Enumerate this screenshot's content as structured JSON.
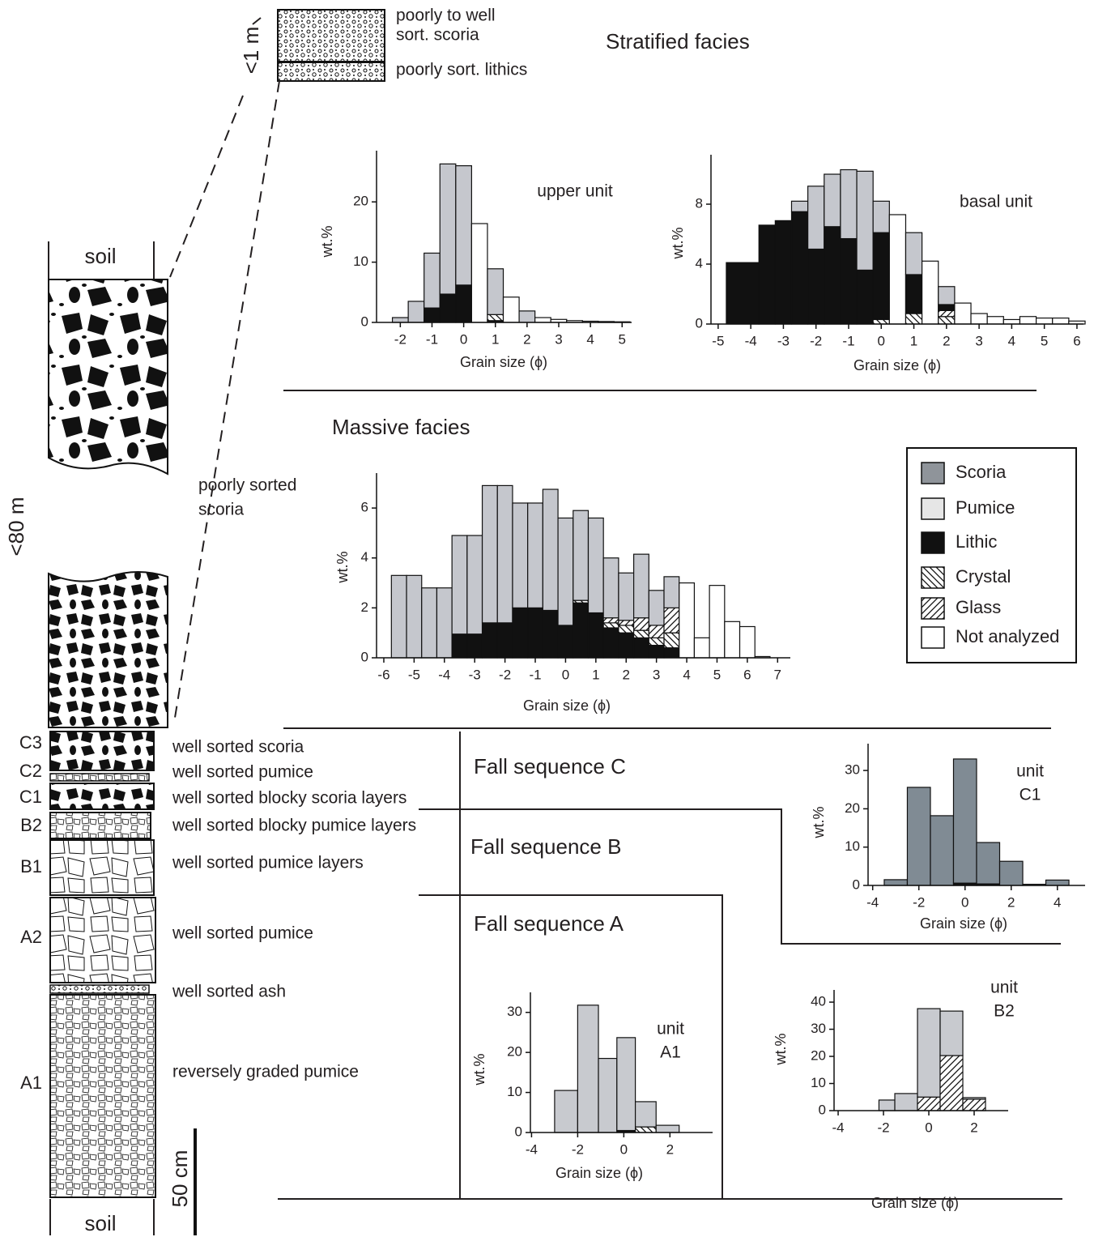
{
  "chart_data": [
    {
      "type": "histogram",
      "title": [
        "upper unit"
      ],
      "xlabel": "Grain size (ϕ)",
      "ylabel": "wt.%",
      "bins": [
        -2.25,
        -1.75,
        -1.25,
        -0.75,
        -0.25,
        0.25,
        0.75,
        1.25,
        1.75,
        2.25,
        2.75,
        3.25,
        3.75,
        4.25,
        4.75,
        5.25
      ],
      "series": [
        {
          "name": "Lithic",
          "color": "#111111",
          "values": [
            0,
            0,
            2.4,
            4.7,
            6.2,
            0,
            0.3,
            0,
            0,
            0,
            0,
            0,
            0,
            0,
            0
          ]
        },
        {
          "name": "Crystal",
          "color": "#ffffff",
          "values": [
            0,
            0,
            0,
            0,
            0,
            0,
            1.0,
            0,
            0,
            0,
            0,
            0,
            0,
            0,
            0
          ]
        },
        {
          "name": "Scoria",
          "color": "#c5c7cd",
          "values": [
            0.8,
            3.5,
            9.1,
            21.6,
            19.8,
            0,
            7.6,
            0,
            1.9,
            0,
            0,
            0,
            0,
            0,
            0
          ]
        },
        {
          "name": "Not analyzed",
          "color": "#ffffff",
          "values": [
            0,
            0,
            0,
            0,
            0,
            16.4,
            0,
            4.2,
            0,
            0.8,
            0.5,
            0.3,
            0.2,
            0.15,
            0.1
          ]
        }
      ],
      "xlim": [
        -2.75,
        5.3
      ],
      "ylim": [
        0,
        28.5
      ],
      "xticks": [
        -2,
        -1,
        0,
        1,
        2,
        3,
        4,
        5
      ],
      "yticks": [
        0,
        10,
        20
      ]
    },
    {
      "type": "histogram",
      "title": [
        "basal unit"
      ],
      "xlabel": "Grain size (ϕ)",
      "ylabel": "wt.%",
      "bins": [
        -4.75,
        -3.75,
        -3.25,
        -2.75,
        -2.25,
        -1.75,
        -1.25,
        -0.75,
        -0.25,
        0.25,
        0.75,
        1.25,
        1.75,
        2.25,
        2.75,
        3.25,
        3.75,
        4.25,
        4.75,
        5.25,
        5.75,
        6.25
      ],
      "series": [
        {
          "name": "Crystal",
          "color": "#ffffff",
          "values": [
            0,
            0,
            0,
            0,
            0,
            0,
            0,
            0,
            0.3,
            0,
            0.7,
            0,
            0.5,
            0,
            0,
            0,
            0,
            0,
            0,
            0,
            0
          ]
        },
        {
          "name": "Glass",
          "color": "#ffffff",
          "values": [
            0,
            0,
            0,
            0,
            0,
            0,
            0,
            0,
            0,
            0,
            0,
            0,
            0.4,
            0,
            0,
            0,
            0,
            0,
            0,
            0,
            0
          ]
        },
        {
          "name": "Lithic",
          "color": "#111111",
          "values": [
            4.1,
            6.6,
            6.9,
            7.5,
            5.0,
            6.5,
            5.7,
            3.6,
            5.8,
            0,
            2.6,
            0,
            0.4,
            0,
            0,
            0,
            0,
            0,
            0,
            0,
            0
          ]
        },
        {
          "name": "Scoria",
          "color": "#c5c7cd",
          "values": [
            0,
            0,
            0,
            0.7,
            4.2,
            3.5,
            4.6,
            6.6,
            2.1,
            0,
            2.8,
            0,
            1.2,
            0,
            0,
            0,
            0,
            0,
            0,
            0,
            0
          ]
        },
        {
          "name": "Not analyzed",
          "color": "#ffffff",
          "values": [
            0,
            0,
            0,
            0,
            0,
            0,
            0,
            0,
            0,
            7.3,
            0,
            4.2,
            0,
            1.4,
            0.7,
            0.5,
            0.3,
            0.5,
            0.4,
            0.4,
            0.2
          ]
        }
      ],
      "xlim": [
        -5.22,
        6.2
      ],
      "ylim": [
        0,
        11.3
      ],
      "xticks": [
        -5,
        -4,
        -3,
        -2,
        -1,
        0,
        1,
        2,
        3,
        4,
        5,
        6
      ],
      "yticks": [
        0,
        4,
        8
      ]
    },
    {
      "type": "histogram",
      "xlabel": "Grain size (ϕ)",
      "ylabel": "wt.%",
      "bins": [
        -5.75,
        -5.25,
        -4.75,
        -4.25,
        -3.75,
        -3.25,
        -2.75,
        -2.25,
        -1.75,
        -1.25,
        -0.75,
        -0.25,
        0.25,
        0.75,
        1.25,
        1.75,
        2.25,
        2.75,
        3.25,
        3.75,
        4.25,
        4.75,
        5.25,
        5.75,
        6.25,
        6.75
      ],
      "series": [
        {
          "name": "Lithic",
          "color": "#111111",
          "values": [
            0,
            0,
            0,
            0,
            0.95,
            0.95,
            1.4,
            1.4,
            2.0,
            2.0,
            1.9,
            1.3,
            2.2,
            1.8,
            1.2,
            1.0,
            0.8,
            0.5,
            0.4,
            0,
            0,
            0,
            0,
            0,
            0
          ]
        },
        {
          "name": "Crystal",
          "color": "#ffffff",
          "values": [
            0,
            0,
            0,
            0,
            0,
            0,
            0,
            0,
            0,
            0,
            0,
            0,
            0.1,
            0,
            0.2,
            0.3,
            0.3,
            0.3,
            0.6,
            0,
            0,
            0,
            0,
            0,
            0
          ]
        },
        {
          "name": "Glass",
          "color": "#ffffff",
          "values": [
            0,
            0,
            0,
            0,
            0,
            0,
            0,
            0,
            0,
            0,
            0,
            0,
            0,
            0,
            0.2,
            0.2,
            0.5,
            0.5,
            1.0,
            0,
            0,
            0,
            0,
            0,
            0
          ]
        },
        {
          "name": "Scoria",
          "color": "#c5c7cd",
          "values": [
            3.3,
            3.3,
            2.8,
            2.8,
            3.95,
            3.95,
            5.5,
            5.5,
            4.2,
            4.2,
            4.85,
            4.3,
            3.6,
            3.8,
            2.4,
            1.9,
            2.55,
            1.4,
            1.25,
            0,
            0,
            0,
            0,
            0,
            0
          ]
        },
        {
          "name": "Not analyzed",
          "color": "#ffffff",
          "values": [
            0,
            0,
            0,
            0,
            0,
            0,
            0,
            0,
            0,
            0,
            0,
            0,
            0,
            0,
            0,
            0,
            0,
            0,
            0,
            3.0,
            0.8,
            2.9,
            1.45,
            1.25,
            0.05
          ]
        }
      ],
      "xlim": [
        -6.24,
        7.42
      ],
      "ylim": [
        0,
        7.4
      ],
      "xticks": [
        -6,
        -5,
        -4,
        -3,
        -2,
        -1,
        0,
        1,
        2,
        3,
        4,
        5,
        6,
        7
      ],
      "yticks": [
        0,
        2,
        4,
        6
      ]
    },
    {
      "type": "histogram",
      "title": [
        "unit",
        "C1"
      ],
      "xlabel": "Grain size (ϕ)",
      "ylabel": "wt.%",
      "bins": [
        -3.5,
        -2.5,
        -1.5,
        -0.5,
        0.5,
        1.5,
        2.5,
        3.5,
        4.5
      ],
      "series": [
        {
          "name": "Lithic",
          "color": "#111111",
          "values": [
            0,
            0,
            0,
            0.6,
            0.4,
            0,
            0,
            0
          ]
        },
        {
          "name": "Scoria",
          "color": "#808b94",
          "values": [
            1.5,
            25.6,
            18.2,
            32.4,
            10.8,
            6.3,
            0.3,
            1.4
          ]
        }
      ],
      "xlim": [
        -4.2,
        5.2
      ],
      "ylim": [
        0,
        37
      ],
      "xticks": [
        -4,
        -2,
        0,
        2,
        4
      ],
      "yticks": [
        0,
        10,
        20,
        30
      ]
    },
    {
      "type": "histogram",
      "title": [
        "unit",
        "A1"
      ],
      "xlabel": "Grain size (ϕ)",
      "ylabel": "wt.%",
      "bins": [
        -3,
        -2,
        -1.1,
        -0.3,
        0.5,
        1.4,
        2.4
      ],
      "series": [
        {
          "name": "Lithic",
          "color": "#111111",
          "values": [
            0,
            0,
            0,
            0.5,
            0,
            0
          ]
        },
        {
          "name": "Crystal",
          "color": "#ffffff",
          "values": [
            0,
            0,
            0,
            0,
            1.4,
            0
          ]
        },
        {
          "name": "Pumice",
          "color": "#c8cacf",
          "values": [
            10.5,
            31.8,
            18.5,
            23.2,
            6.3,
            1.8
          ]
        }
      ],
      "xlim": [
        -4.05,
        3.85
      ],
      "ylim": [
        0,
        35
      ],
      "xticks": [
        -4,
        -2,
        0,
        2
      ],
      "yticks": [
        0,
        10,
        20,
        30
      ]
    },
    {
      "type": "histogram",
      "title": [
        "unit",
        "B2"
      ],
      "xlabel": "Grain size (ϕ)",
      "ylabel": "wt.%",
      "bins": [
        -2.2,
        -1.5,
        -0.5,
        0.5,
        1.5,
        2.5
      ],
      "series": [
        {
          "name": "Glass",
          "color": "#ffffff",
          "values": [
            0,
            0,
            5.0,
            20.3,
            4.2
          ]
        },
        {
          "name": "Pumice",
          "color": "#c8cacf",
          "values": [
            3.9,
            6.3,
            32.6,
            16.4,
            0.6
          ]
        }
      ],
      "xlim": [
        -4.18,
        3.5
      ],
      "ylim": [
        0,
        44.5
      ],
      "xticks": [
        -4,
        -2,
        0,
        2
      ],
      "yticks": [
        0,
        10,
        20,
        30,
        40
      ]
    }
  ],
  "legend": [
    {
      "name": "Scoria",
      "color": "#8f949a"
    },
    {
      "name": "Pumice",
      "color": "#e6e6e6"
    },
    {
      "name": "Lithic",
      "color": "#111111"
    },
    {
      "name": "Crystal",
      "color": "#ffffff",
      "pattern": "back-hatch"
    },
    {
      "name": "Glass",
      "color": "#ffffff",
      "pattern": "hatch"
    },
    {
      "name": "Not analyzed",
      "color": "#ffffff"
    }
  ],
  "sections": {
    "stratified": "Stratified facies",
    "massive": "Massive facies",
    "fall_c": "Fall sequence C",
    "fall_b": "Fall sequence B",
    "fall_a": "Fall sequence A"
  },
  "inset": {
    "scoria": [
      "poorly to well",
      "sort. scoria"
    ],
    "lithics": "poorly sort. lithics",
    "thickness": "<1 m"
  },
  "column": {
    "soil_top": "soil",
    "soil_bottom": "soil",
    "thickness": "<80 m",
    "scale": "50 cm",
    "note": [
      "poorly sorted",
      "scoria"
    ],
    "unit_labels": [
      "C3",
      "C2",
      "C1",
      "B2",
      "B1",
      "A2",
      "A1"
    ],
    "descriptions": [
      "well sorted scoria",
      "well sorted pumice",
      "well sorted blocky scoria layers",
      "well sorted blocky pumice layers",
      "well sorted pumice layers",
      "well sorted pumice",
      "well sorted ash",
      "reversely graded pumice"
    ]
  }
}
